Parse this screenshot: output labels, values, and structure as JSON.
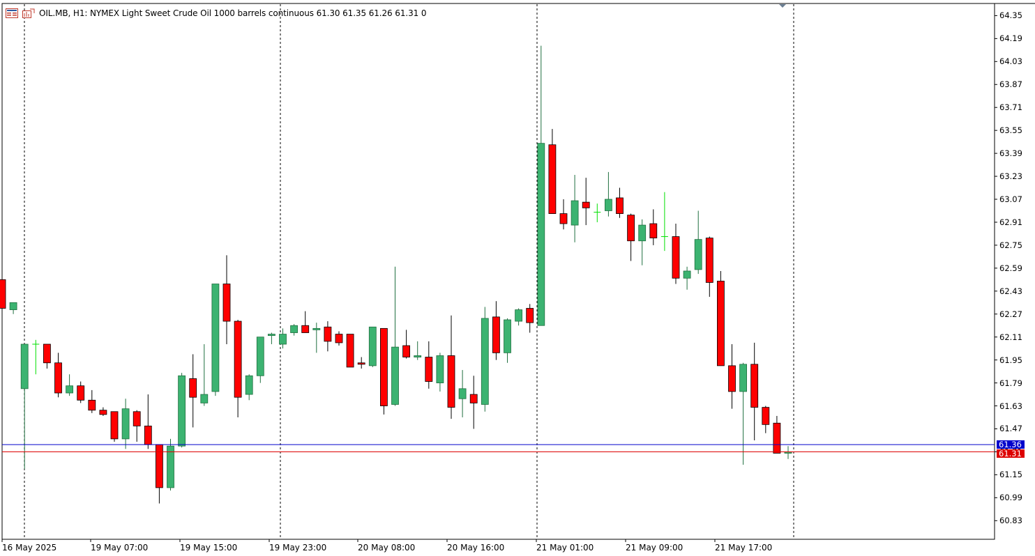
{
  "header": {
    "symbol": "OIL.MB",
    "timeframe": "H1:",
    "description": "NYMEX Light Sweet Crude Oil 1000 barrels continuous",
    "ohlc": "61.30 61.35 61.26 61.31",
    "extra": "0",
    "icons": [
      "chart-list-icon",
      "chart-template-icon"
    ]
  },
  "colors": {
    "bull": "#3cb371",
    "bear": "#ff0000",
    "doji": "#00e000",
    "bid_line": "#0000cc",
    "last_line": "#dd0000",
    "grid_separator": "#000000"
  },
  "price_tags": {
    "ask": "61.36",
    "bid": "61.31"
  },
  "chart_data": {
    "type": "candlestick",
    "y_ticks": [
      "64.35",
      "64.19",
      "64.03",
      "63.87",
      "63.71",
      "63.55",
      "63.39",
      "63.23",
      "63.07",
      "62.91",
      "62.75",
      "62.59",
      "62.43",
      "62.27",
      "62.11",
      "61.95",
      "61.79",
      "61.63",
      "61.47",
      "61.31",
      "61.15",
      "60.99",
      "60.83"
    ],
    "x_ticks": [
      "16 May 2025",
      "19 May 07:00",
      "19 May 15:00",
      "19 May 23:00",
      "20 May 08:00",
      "20 May 16:00",
      "21 May 01:00",
      "21 May 09:00",
      "21 May 17:00"
    ],
    "ylim": [
      60.71,
      64.42
    ],
    "levels": {
      "ask": 61.36,
      "last": 61.31
    },
    "candles": [
      {
        "o": 62.51,
        "h": 62.51,
        "l": 62.31,
        "c": 62.31
      },
      {
        "o": 62.3,
        "h": 62.35,
        "l": 62.27,
        "c": 62.35
      },
      {
        "o": 61.75,
        "h": 62.06,
        "l": 61.19,
        "c": 62.06
      },
      {
        "o": 62.06,
        "h": 62.09,
        "l": 61.85,
        "c": 62.06
      },
      {
        "o": 62.06,
        "h": 62.06,
        "l": 61.89,
        "c": 61.93
      },
      {
        "o": 61.93,
        "h": 62.0,
        "l": 61.69,
        "c": 61.72
      },
      {
        "o": 61.72,
        "h": 61.85,
        "l": 61.7,
        "c": 61.77
      },
      {
        "o": 61.77,
        "h": 61.8,
        "l": 61.65,
        "c": 61.67
      },
      {
        "o": 61.67,
        "h": 61.74,
        "l": 61.58,
        "c": 61.6
      },
      {
        "o": 61.6,
        "h": 61.62,
        "l": 61.56,
        "c": 61.57
      },
      {
        "o": 61.59,
        "h": 61.59,
        "l": 61.38,
        "c": 61.4
      },
      {
        "o": 61.4,
        "h": 61.68,
        "l": 61.33,
        "c": 61.61
      },
      {
        "o": 61.59,
        "h": 61.6,
        "l": 61.38,
        "c": 61.49
      },
      {
        "o": 61.49,
        "h": 61.71,
        "l": 61.33,
        "c": 61.36
      },
      {
        "o": 61.36,
        "h": 61.36,
        "l": 60.95,
        "c": 61.06
      },
      {
        "o": 61.06,
        "h": 61.4,
        "l": 61.04,
        "c": 61.35
      },
      {
        "o": 61.35,
        "h": 61.86,
        "l": 61.34,
        "c": 61.84
      },
      {
        "o": 61.82,
        "h": 61.99,
        "l": 61.48,
        "c": 61.69
      },
      {
        "o": 61.65,
        "h": 62.06,
        "l": 61.63,
        "c": 61.71
      },
      {
        "o": 61.73,
        "h": 62.48,
        "l": 61.7,
        "c": 62.48
      },
      {
        "o": 62.48,
        "h": 62.68,
        "l": 62.06,
        "c": 62.22
      },
      {
        "o": 62.22,
        "h": 62.23,
        "l": 61.55,
        "c": 61.69
      },
      {
        "o": 61.71,
        "h": 61.85,
        "l": 61.67,
        "c": 61.84
      },
      {
        "o": 61.84,
        "h": 62.11,
        "l": 61.79,
        "c": 62.11
      },
      {
        "o": 62.12,
        "h": 62.14,
        "l": 62.06,
        "c": 62.13
      },
      {
        "o": 62.06,
        "h": 62.17,
        "l": 62.03,
        "c": 62.13
      },
      {
        "o": 62.14,
        "h": 62.2,
        "l": 62.12,
        "c": 62.19
      },
      {
        "o": 62.19,
        "h": 62.29,
        "l": 62.14,
        "c": 62.14
      },
      {
        "o": 62.16,
        "h": 62.21,
        "l": 62.0,
        "c": 62.17
      },
      {
        "o": 62.18,
        "h": 62.22,
        "l": 62.01,
        "c": 62.08
      },
      {
        "o": 62.13,
        "h": 62.15,
        "l": 62.05,
        "c": 62.07
      },
      {
        "o": 62.13,
        "h": 62.13,
        "l": 61.9,
        "c": 61.9
      },
      {
        "o": 61.93,
        "h": 61.97,
        "l": 61.89,
        "c": 61.92
      },
      {
        "o": 61.91,
        "h": 62.18,
        "l": 61.9,
        "c": 62.18
      },
      {
        "o": 62.17,
        "h": 62.17,
        "l": 61.57,
        "c": 61.63
      },
      {
        "o": 61.64,
        "h": 62.6,
        "l": 61.63,
        "c": 62.04
      },
      {
        "o": 62.05,
        "h": 62.16,
        "l": 61.96,
        "c": 61.97
      },
      {
        "o": 61.97,
        "h": 62.08,
        "l": 61.95,
        "c": 61.98
      },
      {
        "o": 61.97,
        "h": 62.08,
        "l": 61.75,
        "c": 61.8
      },
      {
        "o": 61.79,
        "h": 62.0,
        "l": 61.73,
        "c": 61.98
      },
      {
        "o": 61.98,
        "h": 62.26,
        "l": 61.54,
        "c": 61.62
      },
      {
        "o": 61.68,
        "h": 61.88,
        "l": 61.55,
        "c": 61.75
      },
      {
        "o": 61.71,
        "h": 61.84,
        "l": 61.47,
        "c": 61.65
      },
      {
        "o": 61.64,
        "h": 62.32,
        "l": 61.59,
        "c": 62.24
      },
      {
        "o": 62.25,
        "h": 62.36,
        "l": 61.95,
        "c": 62.0
      },
      {
        "o": 62.0,
        "h": 62.24,
        "l": 61.93,
        "c": 62.23
      },
      {
        "o": 62.22,
        "h": 62.31,
        "l": 62.19,
        "c": 62.3
      },
      {
        "o": 62.31,
        "h": 62.34,
        "l": 62.14,
        "c": 62.21
      },
      {
        "o": 62.19,
        "h": 64.14,
        "l": 62.19,
        "c": 63.46
      },
      {
        "o": 63.45,
        "h": 63.56,
        "l": 62.97,
        "c": 62.97
      },
      {
        "o": 62.97,
        "h": 63.07,
        "l": 62.86,
        "c": 62.9
      },
      {
        "o": 62.89,
        "h": 63.24,
        "l": 62.77,
        "c": 63.06
      },
      {
        "o": 63.05,
        "h": 63.22,
        "l": 62.89,
        "c": 63.01
      },
      {
        "o": 62.98,
        "h": 63.04,
        "l": 62.91,
        "c": 62.98
      },
      {
        "o": 62.99,
        "h": 63.26,
        "l": 62.95,
        "c": 63.07
      },
      {
        "o": 63.08,
        "h": 63.15,
        "l": 62.94,
        "c": 62.97
      },
      {
        "o": 62.96,
        "h": 62.97,
        "l": 62.64,
        "c": 62.78
      },
      {
        "o": 62.78,
        "h": 62.93,
        "l": 62.61,
        "c": 62.89
      },
      {
        "o": 62.9,
        "h": 63.0,
        "l": 62.75,
        "c": 62.8
      },
      {
        "o": 62.81,
        "h": 63.12,
        "l": 62.71,
        "c": 62.81
      },
      {
        "o": 62.81,
        "h": 62.9,
        "l": 62.48,
        "c": 62.52
      },
      {
        "o": 62.52,
        "h": 62.6,
        "l": 62.44,
        "c": 62.57
      },
      {
        "o": 62.58,
        "h": 62.99,
        "l": 62.55,
        "c": 62.79
      },
      {
        "o": 62.8,
        "h": 62.81,
        "l": 62.39,
        "c": 62.49
      },
      {
        "o": 62.5,
        "h": 62.57,
        "l": 61.92,
        "c": 61.91
      },
      {
        "o": 61.91,
        "h": 62.06,
        "l": 61.61,
        "c": 61.73
      },
      {
        "o": 61.73,
        "h": 61.93,
        "l": 61.22,
        "c": 61.92
      },
      {
        "o": 61.92,
        "h": 62.07,
        "l": 61.39,
        "c": 61.62
      },
      {
        "o": 61.62,
        "h": 61.63,
        "l": 61.44,
        "c": 61.5
      },
      {
        "o": 61.51,
        "h": 61.56,
        "l": 61.3,
        "c": 61.3
      },
      {
        "o": 61.3,
        "h": 61.35,
        "l": 61.26,
        "c": 61.31
      }
    ]
  }
}
